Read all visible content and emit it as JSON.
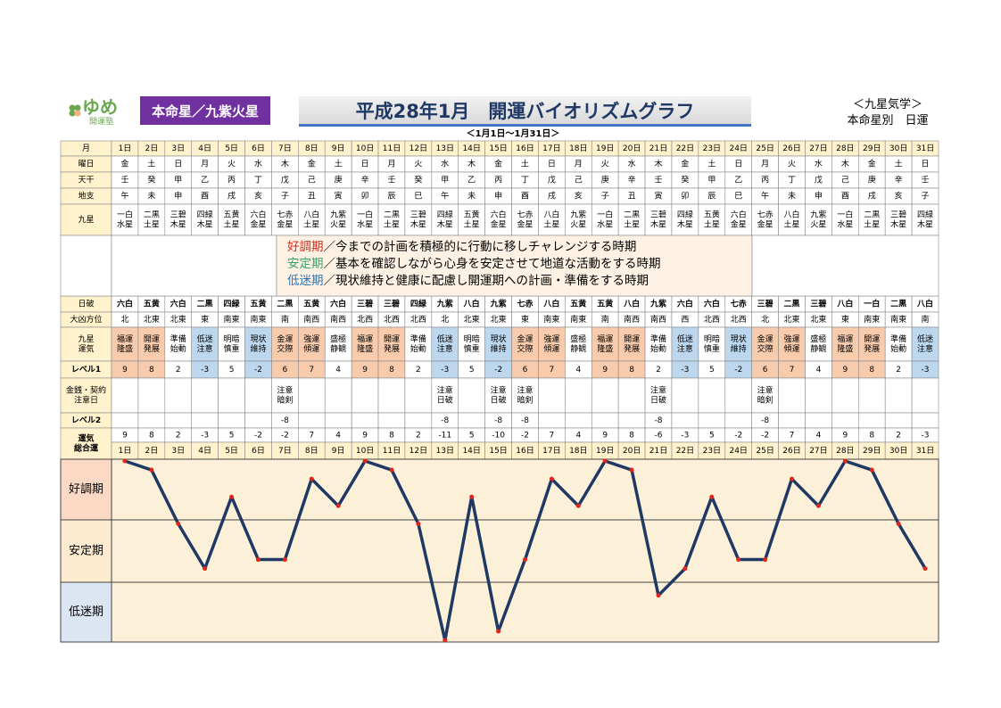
{
  "header": {
    "logo": "ゆめ",
    "logo_sub": "開運塾",
    "honmei": "本命星／九紫火星",
    "title": "平成28年1月　開運バイオリズムグラフ",
    "period": "＜1月1日～1月31日＞",
    "system": "＜九星気学＞",
    "subtitle": "本命星別　日運"
  },
  "table": {
    "labels": [
      "月",
      "曜日",
      "天干",
      "地支",
      "九星",
      "日破",
      "大凶方位",
      [
        "九星",
        "運気"
      ],
      "レベル1",
      [
        "金銭・契約",
        "注意日"
      ],
      "レベル2",
      [
        "運気",
        "総合運"
      ]
    ],
    "days": [
      "1日",
      "2日",
      "3日",
      "4日",
      "5日",
      "6日",
      "7日",
      "8日",
      "9日",
      "10日",
      "11日",
      "12日",
      "13日",
      "14日",
      "15日",
      "16日",
      "17日",
      "18日",
      "19日",
      "20日",
      "21日",
      "22日",
      "23日",
      "24日",
      "25日",
      "26日",
      "27日",
      "28日",
      "29日",
      "30日",
      "31日"
    ],
    "weekdays": [
      "金",
      "土",
      "日",
      "月",
      "火",
      "水",
      "木",
      "金",
      "土",
      "日",
      "月",
      "火",
      "水",
      "木",
      "金",
      "土",
      "日",
      "月",
      "火",
      "水",
      "木",
      "金",
      "土",
      "日",
      "月",
      "火",
      "水",
      "木",
      "金",
      "土",
      "日"
    ],
    "weekday_colors": [
      "#e00",
      "#000",
      "#e00",
      "#000",
      "#000",
      "#000",
      "#000",
      "#000",
      "#000",
      "#e00",
      "#e00",
      "#000",
      "#000",
      "#000",
      "#000",
      "#000",
      "#e00",
      "#000",
      "#000",
      "#000",
      "#000",
      "#000",
      "#000",
      "#e00",
      "#000",
      "#000",
      "#000",
      "#000",
      "#000",
      "#000",
      "#e00"
    ],
    "stems": [
      "壬",
      "癸",
      "甲",
      "乙",
      "丙",
      "丁",
      "戊",
      "己",
      "庚",
      "辛",
      "壬",
      "癸",
      "甲",
      "乙",
      "丙",
      "丁",
      "戊",
      "己",
      "庚",
      "辛",
      "壬",
      "癸",
      "甲",
      "乙",
      "丙",
      "丁",
      "戊",
      "己",
      "庚",
      "辛",
      "壬"
    ],
    "branches": [
      "午",
      "未",
      "申",
      "酉",
      "戌",
      "亥",
      "子",
      "丑",
      "寅",
      "卯",
      "辰",
      "巳",
      "午",
      "未",
      "申",
      "酉",
      "戌",
      "亥",
      "子",
      "丑",
      "寅",
      "卯",
      "辰",
      "巳",
      "午",
      "未",
      "申",
      "酉",
      "戌",
      "亥",
      "子"
    ],
    "stars": [
      [
        "一白",
        "水星"
      ],
      [
        "二黒",
        "土星"
      ],
      [
        "三碧",
        "木星"
      ],
      [
        "四緑",
        "木星"
      ],
      [
        "五黄",
        "土星"
      ],
      [
        "六白",
        "金星"
      ],
      [
        "七赤",
        "金星"
      ],
      [
        "八白",
        "土星"
      ],
      [
        "九紫",
        "火星"
      ],
      [
        "一白",
        "水星"
      ],
      [
        "二黒",
        "土星"
      ],
      [
        "三碧",
        "木星"
      ],
      [
        "四緑",
        "木星"
      ],
      [
        "五黄",
        "土星"
      ],
      [
        "六白",
        "金星"
      ],
      [
        "七赤",
        "金星"
      ],
      [
        "八白",
        "土星"
      ],
      [
        "九紫",
        "火星"
      ],
      [
        "一白",
        "水星"
      ],
      [
        "二黒",
        "土星"
      ],
      [
        "三碧",
        "木星"
      ],
      [
        "四緑",
        "木星"
      ],
      [
        "五黄",
        "土星"
      ],
      [
        "六白",
        "金星"
      ],
      [
        "七赤",
        "金星"
      ],
      [
        "八白",
        "土星"
      ],
      [
        "九紫",
        "火星"
      ],
      [
        "一白",
        "水星"
      ],
      [
        "二黒",
        "土星"
      ],
      [
        "三碧",
        "木星"
      ],
      [
        "四緑",
        "木星"
      ]
    ],
    "legend": [
      {
        "term": "好調期",
        "text": "／今までの計画を積極的に行動に移しチャレンジする時期",
        "color": "#e0261b"
      },
      {
        "term": "安定期",
        "text": "／基本を確認しながら心身を安定させて地道な活動をする時期",
        "color": "#38a169"
      },
      {
        "term": "低迷期",
        "text": "／現状維持と健康に配慮し開運期への計画・準備をする時期",
        "color": "#2e75b6"
      }
    ],
    "day_break": [
      "六白",
      "五黄",
      "六白",
      "二黒",
      "四緑",
      "五黄",
      "二黒",
      "五黄",
      "六白",
      "三碧",
      "三碧",
      "四緑",
      "九紫",
      "八白",
      "九紫",
      "七赤",
      "八白",
      "五黄",
      "五黄",
      "八白",
      "九紫",
      "六白",
      "六白",
      "七赤",
      "三碧",
      "二黒",
      "三碧",
      "八白",
      "一白",
      "二黒",
      "八白"
    ],
    "danger_dir": [
      "北",
      "北東",
      "北東",
      "東",
      "南東",
      "南東",
      "南",
      "南西",
      "南西",
      "北西",
      "北西",
      "北西",
      "北",
      "北東",
      "北東",
      "東",
      "南東",
      "南東",
      "南",
      "南西",
      "南西",
      "西",
      "北西",
      "北西",
      "北",
      "北東",
      "北東",
      "東",
      "南東",
      "南東",
      "南"
    ],
    "fortune": [
      [
        "福運",
        "隆盛"
      ],
      [
        "開運",
        "発展"
      ],
      [
        "準備",
        "始動"
      ],
      [
        "低迷",
        "注意"
      ],
      [
        "明暗",
        "慎重"
      ],
      [
        "現状",
        "維持"
      ],
      [
        "金運",
        "交際"
      ],
      [
        "強運",
        "傾運"
      ],
      [
        "盛極",
        "静観"
      ],
      [
        "福運",
        "隆盛"
      ],
      [
        "開運",
        "発展"
      ],
      [
        "準備",
        "始動"
      ],
      [
        "低迷",
        "注意"
      ],
      [
        "明暗",
        "慎重"
      ],
      [
        "現状",
        "維持"
      ],
      [
        "金運",
        "交際"
      ],
      [
        "強運",
        "傾運"
      ],
      [
        "盛極",
        "静観"
      ],
      [
        "福運",
        "隆盛"
      ],
      [
        "開運",
        "発展"
      ],
      [
        "準備",
        "始動"
      ],
      [
        "低迷",
        "注意"
      ],
      [
        "明暗",
        "慎重"
      ],
      [
        "現状",
        "維持"
      ],
      [
        "金運",
        "交際"
      ],
      [
        "強運",
        "傾運"
      ],
      [
        "盛極",
        "静観"
      ],
      [
        "福運",
        "隆盛"
      ],
      [
        "開運",
        "発展"
      ],
      [
        "準備",
        "始動"
      ],
      [
        "低迷",
        "注意"
      ]
    ],
    "level1": [
      9,
      8,
      2,
      -3,
      5,
      -2,
      6,
      7,
      4,
      9,
      8,
      2,
      -3,
      5,
      -2,
      6,
      7,
      4,
      9,
      8,
      2,
      -3,
      5,
      -2,
      6,
      7,
      4,
      9,
      8,
      2,
      -3
    ],
    "caution": [
      null,
      null,
      null,
      null,
      null,
      null,
      {
        "lines": [
          "注意",
          "暗剣"
        ],
        "color": "#000"
      },
      null,
      null,
      null,
      null,
      null,
      {
        "lines": [
          "注意",
          "日破"
        ],
        "color": "#e0261b"
      },
      null,
      {
        "lines": [
          "注意",
          "日破"
        ],
        "color": "#e0261b"
      },
      {
        "lines": [
          "注意",
          "暗剣"
        ],
        "color": "#000"
      },
      null,
      null,
      null,
      null,
      {
        "lines": [
          "注意",
          "日破"
        ],
        "color": "#e0261b"
      },
      null,
      null,
      null,
      {
        "lines": [
          "注意",
          "暗剣"
        ],
        "color": "#000"
      },
      null,
      null,
      null,
      null,
      null,
      null
    ],
    "level2": [
      null,
      null,
      null,
      null,
      null,
      null,
      -8,
      null,
      null,
      null,
      null,
      null,
      -8,
      null,
      -8,
      -8,
      null,
      null,
      null,
      null,
      -8,
      null,
      null,
      null,
      -8,
      null,
      null,
      null,
      null,
      null,
      null
    ],
    "total": [
      9,
      8,
      2,
      -3,
      5,
      -2,
      -2,
      7,
      4,
      9,
      8,
      2,
      -11,
      5,
      -10,
      -2,
      7,
      4,
      9,
      8,
      -6,
      -3,
      5,
      -2,
      -2,
      7,
      4,
      9,
      8,
      2,
      -3
    ]
  },
  "graph": {
    "bands": [
      "好調期",
      "安定期",
      "低迷期"
    ],
    "ylim": [
      -11.2,
      9.2
    ],
    "line_color": "#1f3864",
    "marker_color": "#e0261b"
  }
}
